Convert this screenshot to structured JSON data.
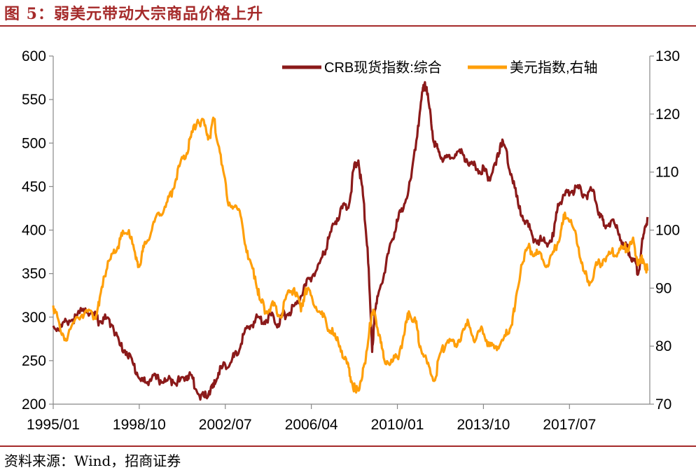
{
  "figure": {
    "title": "图 5：弱美元带动大宗商品价格上升",
    "source": "资料来源：Wind，招商证券"
  },
  "chart_data": {
    "type": "line",
    "title": "",
    "xlabel": "",
    "ylabel_left": "",
    "ylabel_right": "",
    "x_range": [
      "1995-01",
      "2020-12"
    ],
    "x_ticks": [
      "1995/01",
      "1998/10",
      "2002/07",
      "2006/04",
      "2010/01",
      "2013/10",
      "2017/07"
    ],
    "x_tick_dates": [
      1995.0,
      1998.75,
      2002.5,
      2006.25,
      2010.0,
      2013.75,
      2017.5
    ],
    "ylim_left": [
      200,
      600
    ],
    "yticks_left": [
      200,
      250,
      300,
      350,
      400,
      450,
      500,
      550,
      600
    ],
    "ylim_right": [
      70,
      130
    ],
    "yticks_right": [
      70,
      80,
      90,
      100,
      110,
      120,
      130
    ],
    "grid": false,
    "legend_position": "top-right",
    "series": [
      {
        "name": "CRB现货指数:综合",
        "axis": "left",
        "color": "#8b1a1a",
        "x": [
          1995.0,
          1995.3,
          1995.6,
          1996.0,
          1996.4,
          1996.8,
          1997.0,
          1997.3,
          1997.6,
          1997.9,
          1998.2,
          1998.5,
          1998.8,
          1999.0,
          1999.3,
          1999.6,
          1999.9,
          2000.2,
          2000.5,
          2000.8,
          2001.0,
          2001.3,
          2001.6,
          2001.8,
          2002.0,
          2002.2,
          2002.5,
          2002.8,
          2003.0,
          2003.3,
          2003.6,
          2003.9,
          2004.2,
          2004.5,
          2004.8,
          2005.0,
          2005.3,
          2005.6,
          2005.9,
          2006.2,
          2006.5,
          2006.8,
          2007.0,
          2007.3,
          2007.6,
          2007.9,
          2008.1,
          2008.3,
          2008.5,
          2008.7,
          2008.9,
          2009.0,
          2009.2,
          2009.5,
          2009.8,
          2010.0,
          2010.3,
          2010.6,
          2010.9,
          2011.1,
          2011.2,
          2011.4,
          2011.6,
          2011.8,
          2012.0,
          2012.3,
          2012.6,
          2012.9,
          2013.2,
          2013.5,
          2013.8,
          2014.0,
          2014.3,
          2014.5,
          2014.7,
          2015.0,
          2015.3,
          2015.6,
          2015.9,
          2016.2,
          2016.5,
          2016.8,
          2017.0,
          2017.3,
          2017.6,
          2017.9,
          2018.2,
          2018.5,
          2018.8,
          2019.0,
          2019.3,
          2019.6,
          2019.9,
          2020.1,
          2020.3,
          2020.5,
          2020.7,
          2020.9
        ],
        "values": [
          290,
          287,
          295,
          300,
          310,
          302,
          295,
          298,
          290,
          268,
          260,
          245,
          228,
          225,
          230,
          228,
          226,
          228,
          226,
          232,
          234,
          212,
          208,
          215,
          220,
          236,
          245,
          252,
          256,
          280,
          290,
          300,
          295,
          302,
          292,
          302,
          305,
          315,
          330,
          345,
          355,
          372,
          390,
          410,
          425,
          430,
          470,
          480,
          440,
          380,
          260,
          300,
          330,
          360,
          390,
          410,
          430,
          460,
          520,
          560,
          570,
          540,
          500,
          490,
          480,
          482,
          490,
          486,
          476,
          470,
          468,
          460,
          475,
          500,
          495,
          460,
          425,
          410,
          392,
          388,
          385,
          393,
          430,
          440,
          445,
          448,
          440,
          445,
          420,
          405,
          410,
          400,
          382,
          375,
          365,
          350,
          390,
          415
        ]
      },
      {
        "name": "美元指数,右轴",
        "axis": "right",
        "color": "#ff9f0a",
        "x": [
          1995.0,
          1995.3,
          1995.6,
          1996.0,
          1996.4,
          1996.8,
          1997.0,
          1997.2,
          1997.5,
          1997.8,
          1998.0,
          1998.3,
          1998.6,
          1998.8,
          1999.0,
          1999.3,
          1999.6,
          1999.9,
          2000.2,
          2000.5,
          2000.8,
          2001.0,
          2001.3,
          2001.6,
          2001.8,
          2002.0,
          2002.3,
          2002.6,
          2002.9,
          2003.2,
          2003.5,
          2003.8,
          2004.0,
          2004.3,
          2004.6,
          2004.9,
          2005.2,
          2005.5,
          2005.8,
          2006.0,
          2006.3,
          2006.6,
          2006.9,
          2007.2,
          2007.5,
          2007.8,
          2008.0,
          2008.2,
          2008.4,
          2008.6,
          2008.8,
          2009.0,
          2009.2,
          2009.4,
          2009.7,
          2010.0,
          2010.3,
          2010.5,
          2010.8,
          2011.0,
          2011.3,
          2011.6,
          2011.9,
          2012.2,
          2012.5,
          2012.8,
          2013.1,
          2013.4,
          2013.7,
          2014.0,
          2014.3,
          2014.6,
          2014.9,
          2015.1,
          2015.4,
          2015.7,
          2016.0,
          2016.3,
          2016.6,
          2016.9,
          2017.1,
          2017.3,
          2017.6,
          2017.9,
          2018.1,
          2018.4,
          2018.7,
          2019.0,
          2019.3,
          2019.6,
          2019.9,
          2020.1,
          2020.3,
          2020.5,
          2020.7,
          2020.9
        ],
        "values": [
          87,
          83,
          81,
          85,
          86,
          85,
          87,
          92,
          95,
          97,
          99,
          100,
          95,
          94,
          98,
          100,
          103,
          104,
          107,
          111,
          113,
          116,
          119,
          118,
          116,
          119,
          113,
          105,
          104,
          102,
          95,
          92,
          88,
          86,
          87,
          85,
          89,
          90,
          86,
          90,
          88,
          86,
          84,
          82,
          80,
          77,
          74,
          72,
          74,
          77,
          84,
          86,
          82,
          78,
          77,
          78,
          82,
          86,
          84,
          80,
          77,
          74,
          79,
          81,
          80,
          82,
          84,
          81,
          83,
          80,
          80,
          81,
          83,
          86,
          94,
          97,
          96,
          95,
          94,
          97,
          99,
          103,
          101,
          97,
          93,
          91,
          94,
          95,
          96,
          96,
          97,
          97,
          98,
          94,
          95,
          93
        ]
      }
    ]
  }
}
